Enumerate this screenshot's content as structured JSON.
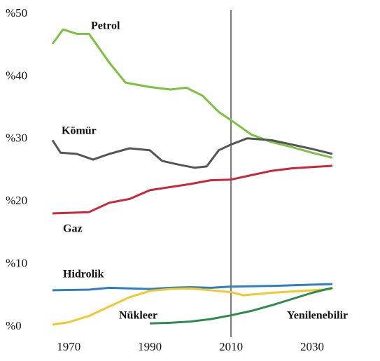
{
  "chart_data": {
    "type": "line",
    "vline": 2010,
    "xlim": [
      1966,
      2035
    ],
    "xticks": [
      1970,
      1990,
      2010,
      2030
    ],
    "ylim": [
      0,
      50
    ],
    "yticks": [
      {
        "value": 0,
        "label": "%0"
      },
      {
        "value": 10,
        "label": "%10"
      },
      {
        "value": 20,
        "label": "%20"
      },
      {
        "value": 30,
        "label": "%30"
      },
      {
        "value": 40,
        "label": "%40"
      },
      {
        "value": 50,
        "label": "%50"
      }
    ],
    "series": [
      {
        "name": "Petrol",
        "color": "#7dc142",
        "x": [
          1966,
          1968.6,
          1972,
          1975,
          1980,
          1984,
          1990,
          1995,
          1999,
          2003,
          2007,
          2010,
          2015,
          2020,
          2025,
          2030,
          2035
        ],
        "values": [
          45,
          47.3,
          46.6,
          46.6,
          42,
          38.8,
          38.1,
          37.7,
          38,
          36.7,
          34.1,
          32.8,
          30.5,
          29.3,
          28.5,
          27.6,
          26.8
        ]
      },
      {
        "name": "Kömür",
        "color": "#555555",
        "x": [
          1966,
          1968,
          1972,
          1976,
          1980,
          1985,
          1990,
          1993,
          1997,
          2001,
          2004,
          2007,
          2010,
          2014,
          2020,
          2025,
          2030,
          2035
        ],
        "values": [
          29.6,
          27.6,
          27.4,
          26.5,
          27.4,
          28.3,
          28,
          26.3,
          25.7,
          25.2,
          25.4,
          28,
          28.9,
          29.9,
          29.6,
          28.9,
          28.2,
          27.4
        ]
      },
      {
        "name": "Gaz",
        "color": "#c8283a",
        "x": [
          1966,
          1975,
          1980,
          1985,
          1990,
          1995,
          2000,
          2005,
          2010,
          2015,
          2020,
          2025,
          2030,
          2035
        ],
        "values": [
          17.9,
          18.1,
          19.6,
          20.2,
          21.6,
          22.1,
          22.6,
          23.2,
          23.3,
          24,
          24.7,
          25.1,
          25.3,
          25.5
        ]
      },
      {
        "name": "Hidrolik",
        "color": "#2f7fc0",
        "x": [
          1966,
          1975,
          1980,
          1990,
          1995,
          2000,
          2005,
          2010,
          2020,
          2030,
          2035
        ],
        "values": [
          5.6,
          5.7,
          6,
          5.8,
          6,
          6.1,
          6,
          6.2,
          6.3,
          6.5,
          6.6
        ]
      },
      {
        "name": "Nükleer",
        "color": "#f0c830",
        "x": [
          1966,
          1970,
          1975,
          1980,
          1985,
          1990,
          1995,
          2000,
          2005,
          2010,
          2013,
          2020,
          2030,
          2035
        ],
        "values": [
          0.1,
          0.5,
          1.5,
          3,
          4.5,
          5.5,
          5.8,
          5.9,
          5.6,
          5.3,
          4.8,
          5.2,
          5.6,
          5.8
        ]
      },
      {
        "name": "Yenilenebilir",
        "color": "#2e8b50",
        "x": [
          1990,
          1995,
          2000,
          2005,
          2010,
          2015,
          2020,
          2025,
          2030,
          2035
        ],
        "values": [
          0.3,
          0.4,
          0.6,
          1,
          1.6,
          2.3,
          3.2,
          4.2,
          5.2,
          6
        ]
      }
    ]
  }
}
